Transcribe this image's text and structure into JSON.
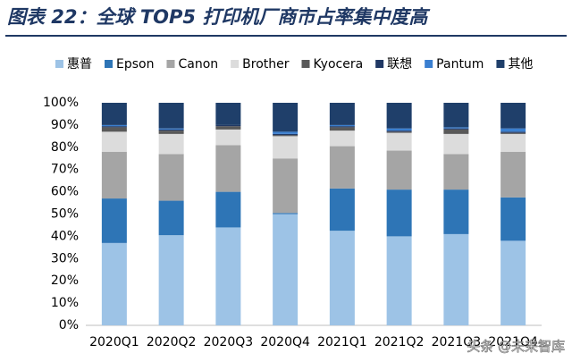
{
  "chart_data": {
    "type": "stacked_bar",
    "title": "图表 22：全球 TOP5 打印机厂商市占率集中度高",
    "annotation": "头条 @未来智库",
    "categories": [
      "2020Q1",
      "2020Q2",
      "2020Q3",
      "2020Q4",
      "2021Q1",
      "2021Q2",
      "2021Q3",
      "2021Q4"
    ],
    "series": [
      {
        "name": "惠普",
        "color": "#9dc3e6",
        "values": [
          37,
          40.5,
          44,
          50,
          42.5,
          40,
          41,
          38
        ]
      },
      {
        "name": "Epson",
        "color": "#2e75b6",
        "values": [
          20,
          15.5,
          16,
          0.5,
          19,
          21,
          20,
          19.5
        ]
      },
      {
        "name": "Canon",
        "color": "#a5a5a5",
        "values": [
          21,
          21,
          21,
          24.5,
          19,
          17.5,
          16,
          20.5
        ]
      },
      {
        "name": "Brother",
        "color": "#dcdcdc",
        "values": [
          9,
          9,
          7,
          10,
          7,
          8,
          9,
          8
        ]
      },
      {
        "name": "Kyocera",
        "color": "#595959",
        "values": [
          2,
          1.5,
          1.5,
          0.5,
          1.5,
          0.5,
          2,
          0.5
        ]
      },
      {
        "name": "联想",
        "color": "#203864",
        "values": [
          0.5,
          0.5,
          0.5,
          0.5,
          0.5,
          0.5,
          0.5,
          0.5
        ]
      },
      {
        "name": "Pantum",
        "color": "#3a7fd0",
        "values": [
          0.5,
          0.5,
          0,
          1,
          0.5,
          1,
          0.5,
          1.5
        ]
      },
      {
        "name": "其他",
        "color": "#1f3f6a",
        "values": [
          10,
          11.5,
          10,
          13,
          10,
          11.5,
          11,
          11.5
        ]
      }
    ],
    "ylim": [
      0,
      100
    ],
    "yticks": [
      {
        "value": 0,
        "label": "0%"
      },
      {
        "value": 10,
        "label": "10%"
      },
      {
        "value": 20,
        "label": "20%"
      },
      {
        "value": 30,
        "label": "30%"
      },
      {
        "value": 40,
        "label": "40%"
      },
      {
        "value": 50,
        "label": "50%"
      },
      {
        "value": 60,
        "label": "60%"
      },
      {
        "value": 70,
        "label": "70%"
      },
      {
        "value": 80,
        "label": "80%"
      },
      {
        "value": 90,
        "label": "90%"
      },
      {
        "value": 100,
        "label": "100%"
      }
    ],
    "grid": false
  }
}
